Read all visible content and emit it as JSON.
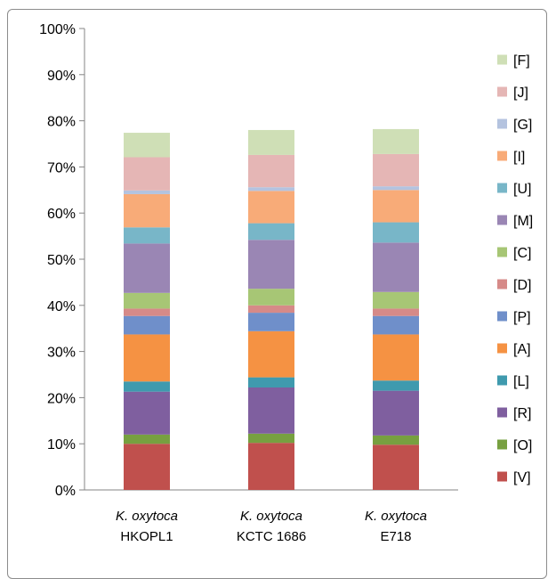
{
  "colors": {
    "V": "#c0504d",
    "O": "#77a040",
    "R": "#7f5f9f",
    "L": "#3f9aae",
    "A": "#f59243",
    "P": "#6f8fca",
    "D": "#d68a88",
    "C": "#a7c675",
    "M": "#9a86b4",
    "U": "#78b6c8",
    "I": "#f8ab78",
    "G": "#b4c3df",
    "J": "#e5b6b5",
    "F": "#cfdfb6"
  },
  "chart_data": {
    "type": "bar",
    "stacked": true,
    "percent_stacked": true,
    "title": "",
    "xlabel": "",
    "ylabel": "",
    "ylim": [
      0,
      100
    ],
    "y_ticks": [
      "0%",
      "10%",
      "20%",
      "30%",
      "40%",
      "50%",
      "60%",
      "70%",
      "80%",
      "90%",
      "100%"
    ],
    "grid": false,
    "legend_position": "right",
    "categories": [
      {
        "species": "K. oxytoca",
        "strain": "HKOPL1"
      },
      {
        "species": "K. oxytoca",
        "strain": "KCTC 1686"
      },
      {
        "species": "K. oxytoca",
        "strain": "E718"
      }
    ],
    "series": [
      {
        "name": "[V]",
        "key": "V",
        "values": [
          10.0,
          10.2,
          9.8
        ]
      },
      {
        "name": "[O]",
        "key": "O",
        "values": [
          2.0,
          2.0,
          2.0
        ]
      },
      {
        "name": "[R]",
        "key": "R",
        "values": [
          9.3,
          10.0,
          9.7
        ]
      },
      {
        "name": "[L]",
        "key": "L",
        "values": [
          2.2,
          2.2,
          2.2
        ]
      },
      {
        "name": "[A]",
        "key": "A",
        "values": [
          10.2,
          10.0,
          10.0
        ]
      },
      {
        "name": "[P]",
        "key": "P",
        "values": [
          4.0,
          4.0,
          4.0
        ]
      },
      {
        "name": "[D]",
        "key": "D",
        "values": [
          1.6,
          1.6,
          1.6
        ]
      },
      {
        "name": "[C]",
        "key": "C",
        "values": [
          3.4,
          3.6,
          3.6
        ]
      },
      {
        "name": "[M]",
        "key": "M",
        "values": [
          10.7,
          10.6,
          10.7
        ]
      },
      {
        "name": "[U]",
        "key": "U",
        "values": [
          3.5,
          3.6,
          4.4
        ]
      },
      {
        "name": "[I]",
        "key": "I",
        "values": [
          7.2,
          7.0,
          7.0
        ]
      },
      {
        "name": "[G]",
        "key": "G",
        "values": [
          0.8,
          0.8,
          0.8
        ]
      },
      {
        "name": "[J]",
        "key": "J",
        "values": [
          7.2,
          7.0,
          7.0
        ]
      },
      {
        "name": "[F]",
        "key": "F",
        "values": [
          5.3,
          5.4,
          5.4
        ]
      }
    ],
    "legend": [
      "[F]",
      "[J]",
      "[G]",
      "[I]",
      "[U]",
      "[M]",
      "[C]",
      "[D]",
      "[P]",
      "[A]",
      "[L]",
      "[R]",
      "[O]",
      "[V]"
    ]
  }
}
